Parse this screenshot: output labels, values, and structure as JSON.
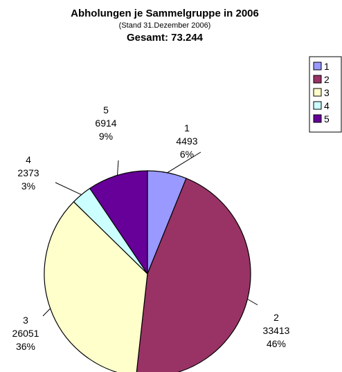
{
  "chart_data": {
    "type": "pie",
    "title": "Abholungen je Sammelgruppe in 2006",
    "subtitle": "(Stand 31.Dezember 2006)",
    "total_label": "Gesamt: 73.244",
    "slices": [
      {
        "name": "1",
        "value": 4493,
        "percent": "6%",
        "color": "#9999ff"
      },
      {
        "name": "2",
        "value": 33413,
        "percent": "46%",
        "color": "#993366"
      },
      {
        "name": "3",
        "value": 26051,
        "percent": "36%",
        "color": "#ffffcc"
      },
      {
        "name": "4",
        "value": 2373,
        "percent": "3%",
        "color": "#ccffff"
      },
      {
        "name": "5",
        "value": 6914,
        "percent": "9%",
        "color": "#660099"
      }
    ],
    "legend_position": "top-right"
  }
}
